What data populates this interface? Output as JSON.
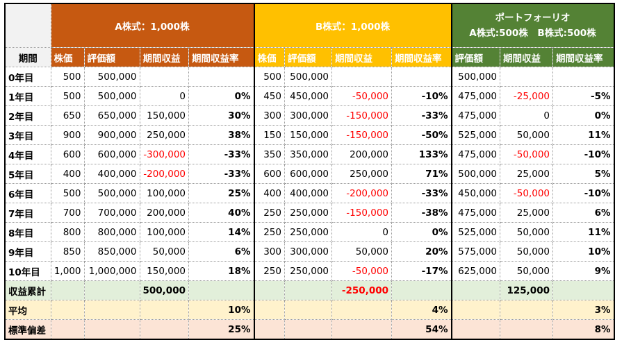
{
  "headers": {
    "a_stock": "A株式：1,000株",
    "b_stock": "B株式：1,000株",
    "portfolio_line1": "ポートフォーリオ",
    "portfolio_line2": "A株式:500株　B株式:500株"
  },
  "columns": {
    "period": "期間",
    "a": [
      "株価",
      "評価額",
      "期間収益",
      "期間収益率"
    ],
    "b": [
      "株価",
      "評価額",
      "期間収益",
      "期間収益率"
    ],
    "p": [
      "評価額",
      "期間収益",
      "期間収益率"
    ]
  },
  "rows": [
    {
      "label": "0年目",
      "a": [
        "500",
        "500,000",
        "",
        ""
      ],
      "b": [
        "500",
        "500,000",
        "",
        ""
      ],
      "p": [
        "500,000",
        "",
        ""
      ]
    },
    {
      "label": "1年目",
      "a": [
        "500",
        "500,000",
        "0",
        "0%"
      ],
      "b": [
        "450",
        "450,000",
        "-50,000",
        "-10%"
      ],
      "p": [
        "475,000",
        "-25,000",
        "-5%"
      ]
    },
    {
      "label": "2年目",
      "a": [
        "650",
        "650,000",
        "150,000",
        "30%"
      ],
      "b": [
        "300",
        "300,000",
        "-150,000",
        "-33%"
      ],
      "p": [
        "475,000",
        "0",
        "0%"
      ]
    },
    {
      "label": "3年目",
      "a": [
        "900",
        "900,000",
        "250,000",
        "38%"
      ],
      "b": [
        "150",
        "150,000",
        "-150,000",
        "-50%"
      ],
      "p": [
        "525,000",
        "50,000",
        "11%"
      ]
    },
    {
      "label": "4年目",
      "a": [
        "600",
        "600,000",
        "-300,000",
        "-33%"
      ],
      "b": [
        "350",
        "350,000",
        "200,000",
        "133%"
      ],
      "p": [
        "475,000",
        "-50,000",
        "-10%"
      ]
    },
    {
      "label": "5年目",
      "a": [
        "400",
        "400,000",
        "-200,000",
        "-33%"
      ],
      "b": [
        "600",
        "600,000",
        "250,000",
        "71%"
      ],
      "p": [
        "500,000",
        "25,000",
        "5%"
      ]
    },
    {
      "label": "6年目",
      "a": [
        "500",
        "500,000",
        "100,000",
        "25%"
      ],
      "b": [
        "400",
        "400,000",
        "-200,000",
        "-33%"
      ],
      "p": [
        "450,000",
        "-50,000",
        "-10%"
      ]
    },
    {
      "label": "7年目",
      "a": [
        "700",
        "700,000",
        "200,000",
        "40%"
      ],
      "b": [
        "250",
        "250,000",
        "-150,000",
        "-38%"
      ],
      "p": [
        "475,000",
        "25,000",
        "6%"
      ]
    },
    {
      "label": "8年目",
      "a": [
        "800",
        "800,000",
        "100,000",
        "14%"
      ],
      "b": [
        "250",
        "250,000",
        "0",
        "0%"
      ],
      "p": [
        "525,000",
        "50,000",
        "11%"
      ]
    },
    {
      "label": "9年目",
      "a": [
        "850",
        "850,000",
        "50,000",
        "6%"
      ],
      "b": [
        "300",
        "300,000",
        "50,000",
        "20%"
      ],
      "p": [
        "575,000",
        "50,000",
        "10%"
      ]
    },
    {
      "label": "10年目",
      "a": [
        "1,000",
        "1,000,000",
        "150,000",
        "18%"
      ],
      "b": [
        "250",
        "250,000",
        "-50,000",
        "-17%"
      ],
      "p": [
        "625,000",
        "50,000",
        "9%"
      ]
    }
  ],
  "summary": {
    "total_label": "収益累計",
    "total_a": "500,000",
    "total_b": "-250,000",
    "total_p": "125,000",
    "avg_label": "平均",
    "avg_a": "10%",
    "avg_b": "4%",
    "avg_p": "3%",
    "std_label": "標準偏差",
    "std_a": "25%",
    "std_b": "54%",
    "std_p": "8%"
  },
  "colors": {
    "a_header": "#c65911",
    "b_header": "#ffc000",
    "portfolio_header": "#548235",
    "negative": "#ff0000",
    "sum_row": "#e2efda",
    "avg_row": "#fff2cc",
    "std_row": "#fce4d6"
  }
}
